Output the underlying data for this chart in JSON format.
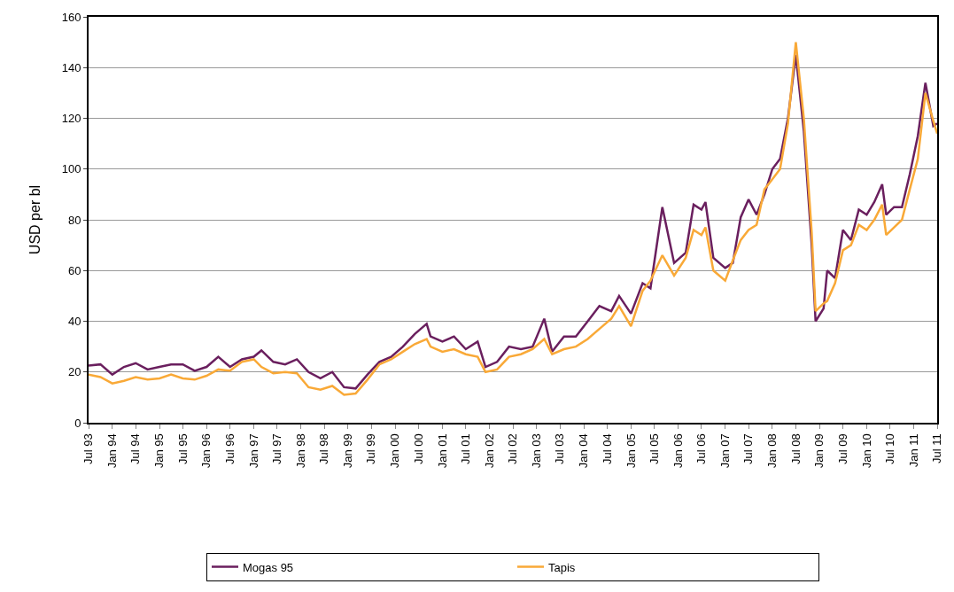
{
  "chart_data": {
    "type": "line",
    "ylabel": "USD per bl",
    "x": [
      "1993-07",
      "1993-10",
      "1994-01",
      "1994-04",
      "1994-07",
      "1994-10",
      "1995-01",
      "1995-04",
      "1995-07",
      "1995-10",
      "1996-01",
      "1996-04",
      "1996-07",
      "1996-10",
      "1997-01",
      "1997-03",
      "1997-06",
      "1997-09",
      "1997-12",
      "1998-03",
      "1998-06",
      "1998-09",
      "1998-12",
      "1999-03",
      "1999-06",
      "1999-09",
      "1999-12",
      "2000-03",
      "2000-06",
      "2000-09",
      "2000-10",
      "2001-01",
      "2001-04",
      "2001-07",
      "2001-10",
      "2001-12",
      "2002-03",
      "2002-06",
      "2002-09",
      "2002-12",
      "2003-03",
      "2003-05",
      "2003-08",
      "2003-11",
      "2004-02",
      "2004-05",
      "2004-08",
      "2004-10",
      "2005-01",
      "2005-04",
      "2005-06",
      "2005-09",
      "2005-12",
      "2006-03",
      "2006-05",
      "2006-07",
      "2006-08",
      "2006-10",
      "2007-01",
      "2007-03",
      "2007-05",
      "2007-07",
      "2007-09",
      "2007-11",
      "2008-01",
      "2008-03",
      "2008-05",
      "2008-07",
      "2008-09",
      "2008-11",
      "2008-12",
      "2009-02",
      "2009-03",
      "2009-05",
      "2009-07",
      "2009-09",
      "2009-11",
      "2010-01",
      "2010-03",
      "2010-05",
      "2010-06",
      "2010-08",
      "2010-10",
      "2010-12",
      "2011-02",
      "2011-04",
      "2011-06",
      "2011-07"
    ],
    "series": [
      {
        "name": "Mogas 95",
        "color": "#6a1f5e",
        "values": [
          22.5,
          23,
          19,
          22,
          23.5,
          21,
          22,
          23,
          23,
          20.5,
          22,
          26,
          22,
          25,
          26,
          28.5,
          24,
          23,
          25,
          20,
          17.5,
          20,
          14,
          13.5,
          19,
          24,
          26,
          30,
          35,
          39,
          34,
          32,
          34,
          29,
          32,
          22,
          24,
          30,
          29,
          30,
          41,
          28,
          34,
          34,
          40,
          46,
          44,
          50,
          43,
          55,
          53,
          85,
          63,
          67,
          86,
          84,
          87,
          65,
          61,
          63,
          81,
          88,
          82,
          90,
          100,
          104,
          120,
          145,
          115,
          70,
          40,
          45,
          60,
          57,
          76,
          72,
          84,
          82,
          87,
          94,
          82,
          85,
          85,
          98,
          113,
          134,
          117,
          118
        ]
      },
      {
        "name": "Tapis",
        "color": "#f9a937",
        "values": [
          19,
          18,
          15.5,
          16.5,
          18,
          17,
          17.5,
          19,
          17.5,
          17,
          18.5,
          21,
          20.5,
          24,
          25,
          22,
          19.5,
          20,
          19.5,
          14,
          13,
          14.5,
          11,
          11.5,
          17,
          23,
          25,
          28,
          31,
          33,
          30,
          28,
          29,
          27,
          26,
          20,
          21,
          26,
          27,
          29,
          33,
          27,
          29,
          30,
          33,
          37,
          41,
          46,
          38,
          52,
          56,
          66,
          58,
          65,
          76,
          74,
          77,
          60,
          56,
          64,
          72,
          76,
          78,
          92,
          96,
          100,
          118,
          150,
          120,
          75,
          44,
          47,
          48,
          55,
          68,
          70,
          78,
          76,
          80,
          86,
          74,
          77,
          80,
          92,
          104,
          130,
          119,
          114
        ]
      }
    ],
    "xlim": [
      "1993-07",
      "2011-07"
    ],
    "xticks": [
      {
        "value": "1993-07",
        "label": "Jul 93"
      },
      {
        "value": "1994-01",
        "label": "Jan 94"
      },
      {
        "value": "1994-07",
        "label": "Jul 94"
      },
      {
        "value": "1995-01",
        "label": "Jan 95"
      },
      {
        "value": "1995-07",
        "label": "Jul 95"
      },
      {
        "value": "1996-01",
        "label": "Jan 96"
      },
      {
        "value": "1996-07",
        "label": "Jul 96"
      },
      {
        "value": "1997-01",
        "label": "Jan 97"
      },
      {
        "value": "1997-07",
        "label": "Jul 97"
      },
      {
        "value": "1998-01",
        "label": "Jan 98"
      },
      {
        "value": "1998-07",
        "label": "Jul 98"
      },
      {
        "value": "1999-01",
        "label": "Jan 99"
      },
      {
        "value": "1999-07",
        "label": "Jul 99"
      },
      {
        "value": "2000-01",
        "label": "Jan 00"
      },
      {
        "value": "2000-07",
        "label": "Jul 00"
      },
      {
        "value": "2001-01",
        "label": "Jan 01"
      },
      {
        "value": "2001-07",
        "label": "Jul 01"
      },
      {
        "value": "2002-01",
        "label": "Jan 02"
      },
      {
        "value": "2002-07",
        "label": "Jul 02"
      },
      {
        "value": "2003-01",
        "label": "Jan 03"
      },
      {
        "value": "2003-07",
        "label": "Jul 03"
      },
      {
        "value": "2004-01",
        "label": "Jan 04"
      },
      {
        "value": "2004-07",
        "label": "Jul 04"
      },
      {
        "value": "2005-01",
        "label": "Jan 05"
      },
      {
        "value": "2005-07",
        "label": "Jul 05"
      },
      {
        "value": "2006-01",
        "label": "Jan 06"
      },
      {
        "value": "2006-07",
        "label": "Jul 06"
      },
      {
        "value": "2007-01",
        "label": "Jan 07"
      },
      {
        "value": "2007-07",
        "label": "Jul 07"
      },
      {
        "value": "2008-01",
        "label": "Jan 08"
      },
      {
        "value": "2008-07",
        "label": "Jul 08"
      },
      {
        "value": "2009-01",
        "label": "Jan 09"
      },
      {
        "value": "2009-07",
        "label": "Jul 09"
      },
      {
        "value": "2010-01",
        "label": "Jan 10"
      },
      {
        "value": "2010-07",
        "label": "Jul 10"
      },
      {
        "value": "2011-01",
        "label": "Jan 11"
      },
      {
        "value": "2011-07",
        "label": "Jul 11"
      }
    ],
    "ylim": [
      0,
      160
    ],
    "yticks": [
      0,
      20,
      40,
      60,
      80,
      100,
      120,
      140,
      160
    ],
    "grid": "y",
    "legend": "bottom",
    "marker": "none",
    "line_style": "solid"
  }
}
